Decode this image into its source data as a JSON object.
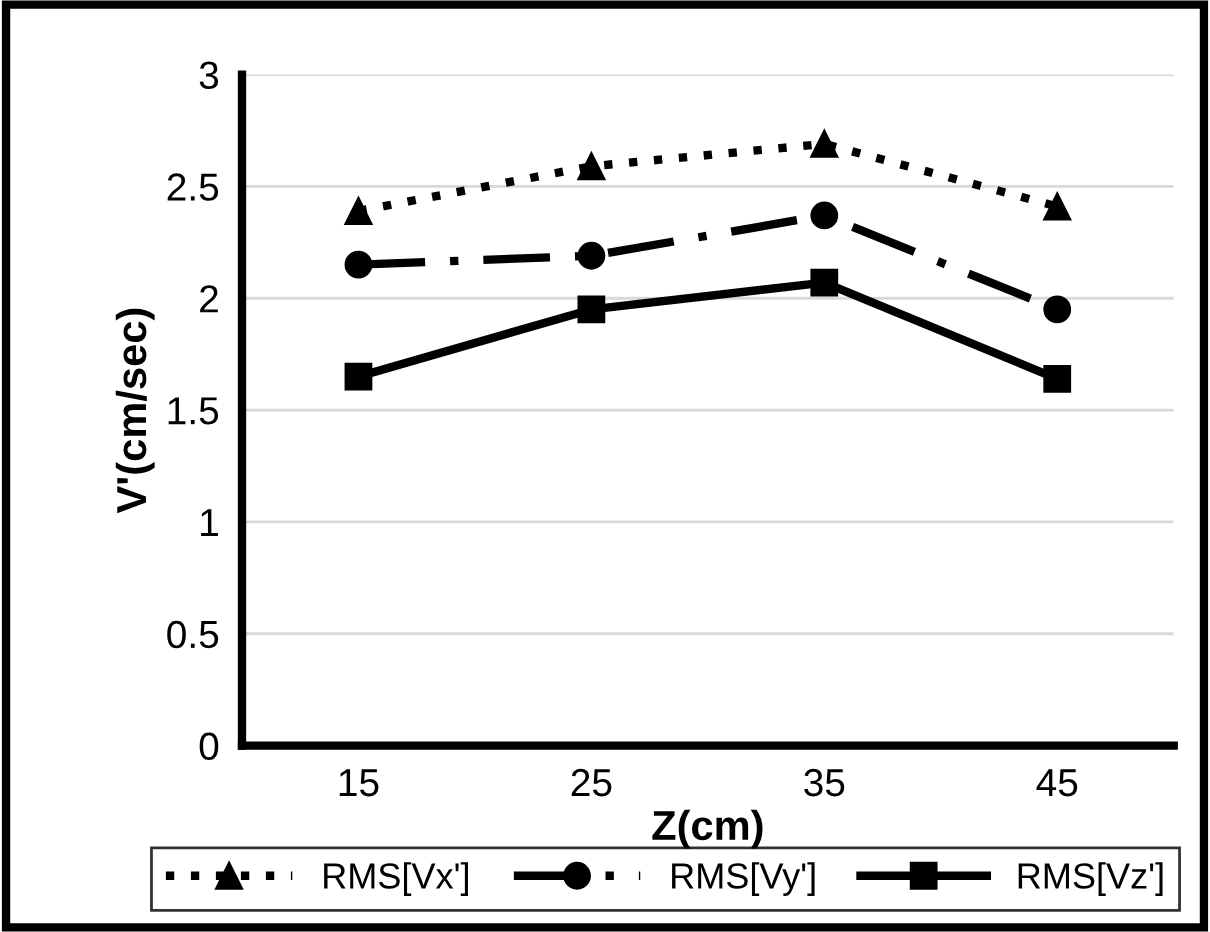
{
  "chart_data": {
    "type": "line",
    "xlabel": "Z(cm)",
    "ylabel": "V'(cm/sec)",
    "categories": [
      "15",
      "25",
      "35",
      "45"
    ],
    "series": [
      {
        "name": "RMS[Vx']",
        "color": "#000000",
        "marker": "triangle",
        "line_style": "dotted",
        "values": [
          2.39,
          2.59,
          2.69,
          2.41
        ]
      },
      {
        "name": "RMS[Vy']",
        "color": "#000000",
        "marker": "circle",
        "line_style": "dashed",
        "values": [
          2.15,
          2.19,
          2.37,
          1.95
        ]
      },
      {
        "name": "RMS[Vz']",
        "color": "#000000",
        "marker": "square",
        "line_style": "solid",
        "values": [
          1.65,
          1.95,
          2.07,
          1.64
        ]
      }
    ],
    "ylim": [
      0,
      3
    ],
    "yticks": [
      0,
      0.5,
      1,
      1.5,
      2,
      2.5,
      3
    ],
    "grid": "y",
    "legend": "bottom"
  }
}
